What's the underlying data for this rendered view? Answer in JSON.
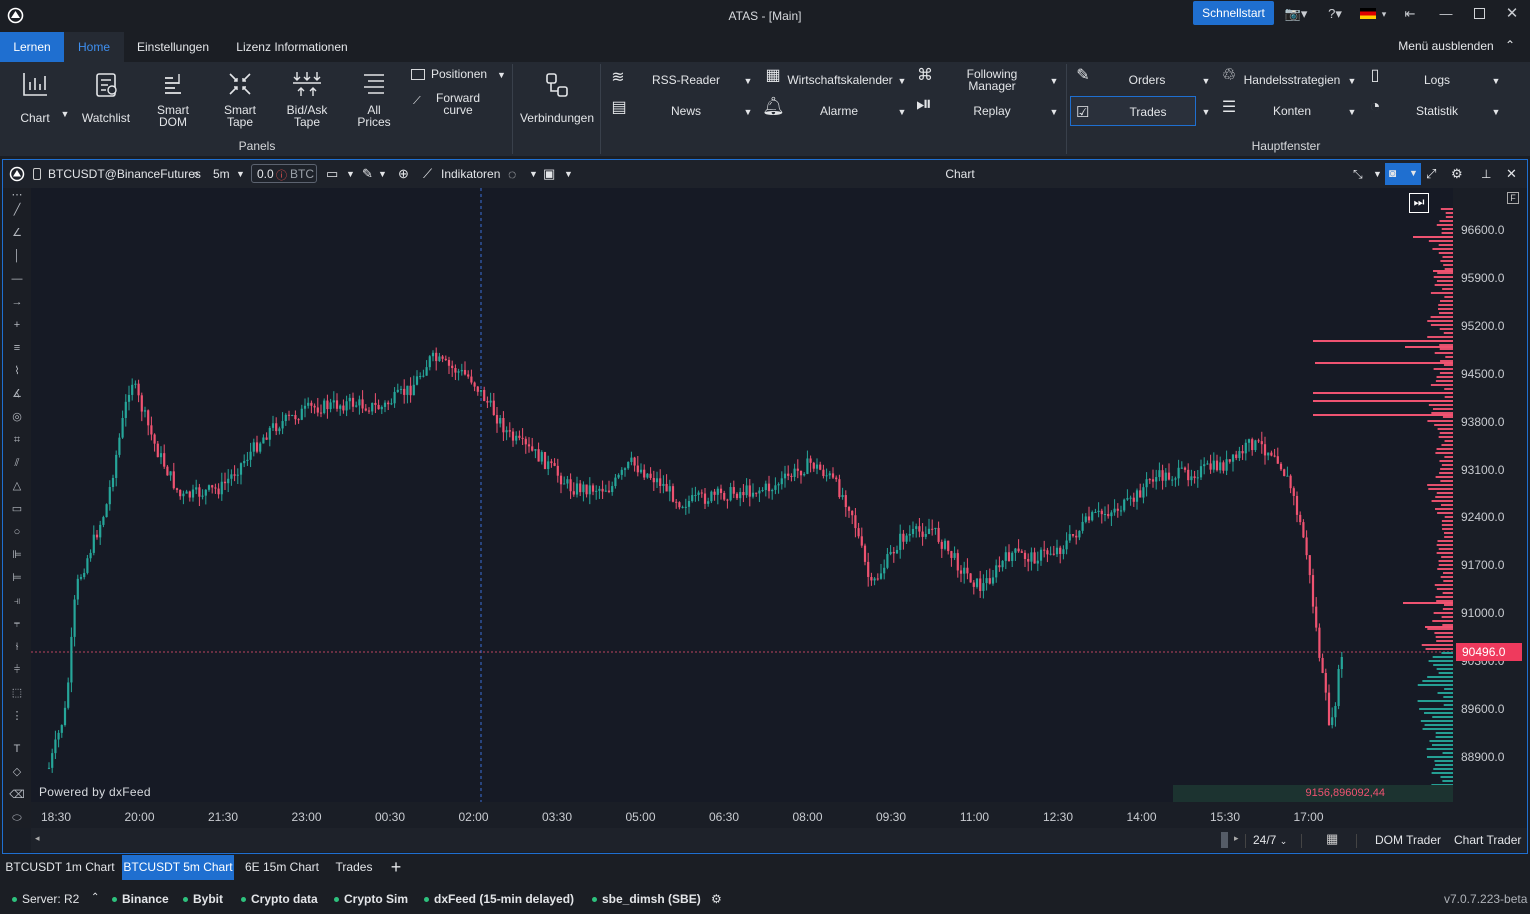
{
  "window": {
    "title": "ATAS - [Main]",
    "quickstart": "Schnellstart"
  },
  "ribbon_tabs": [
    "Lernen",
    "Home",
    "Einstellungen",
    "Lizenz Informationen"
  ],
  "hide_menu": "Menü ausblenden",
  "panels": {
    "chart": "Chart",
    "watchlist": "Watchlist",
    "smart_dom": "Smart DOM",
    "smart_tape": "Smart Tape",
    "bidask_tape": "Bid/Ask Tape",
    "all_prices": "All Prices",
    "positionen": "Positionen",
    "forward_curve": "Forward curve",
    "group_label": "Panels"
  },
  "connections": "Verbindungen",
  "tools": {
    "rss": "RSS-Reader",
    "news": "News",
    "calendar": "Wirtschaftskalender",
    "alarms": "Alarme",
    "following": "Following Manager",
    "replay": "Replay"
  },
  "main_window": {
    "orders": "Orders",
    "trades": "Trades",
    "strategies": "Handelsstrategien",
    "accounts": "Konten",
    "logs": "Logs",
    "statistics": "Statistik",
    "group_label": "Hauptfenster"
  },
  "chart_toolbar": {
    "instrument": "BTCUSDT@BinanceFutures",
    "timeframe": "5m",
    "volume_box": "0.0",
    "volume_unit": "BTC",
    "indicators": "Indikatoren",
    "title": "Chart"
  },
  "chart": {
    "y_labels": [
      "96600.0",
      "95900.0",
      "95200.0",
      "94500.0",
      "93800.0",
      "93100.0",
      "92400.0",
      "91700.0",
      "91000.0",
      "90300.0",
      "89600.0",
      "88900.0"
    ],
    "x_labels": [
      "18:30",
      "20:00",
      "21:30",
      "23:00",
      "00:30",
      "02:00",
      "03:30",
      "05:00",
      "06:30",
      "08:00",
      "09:30",
      "11:00",
      "12:30",
      "14:00",
      "15:30",
      "17:00"
    ],
    "current_price": "90496.0",
    "watermark": "Powered by dxFeed",
    "volume_total": "9156,896092,44",
    "up_color": "#26a69a",
    "down_color": "#ef5371"
  },
  "chart_footer": {
    "session": "24/7",
    "dom_trader": "DOM Trader",
    "chart_trader": "Chart Trader"
  },
  "bottom_tabs": [
    "BTCUSDT 1m Chart",
    "BTCUSDT 5m Chart",
    "6E 15m Chart",
    "Trades"
  ],
  "status": {
    "server": "Server: R2",
    "items": [
      "Binance",
      "Bybit",
      "Crypto data",
      "Crypto Sim",
      "dxFeed (15-min delayed)",
      "sbe_dimsh (SBE)"
    ],
    "version": "v7.0.7.223-beta"
  }
}
